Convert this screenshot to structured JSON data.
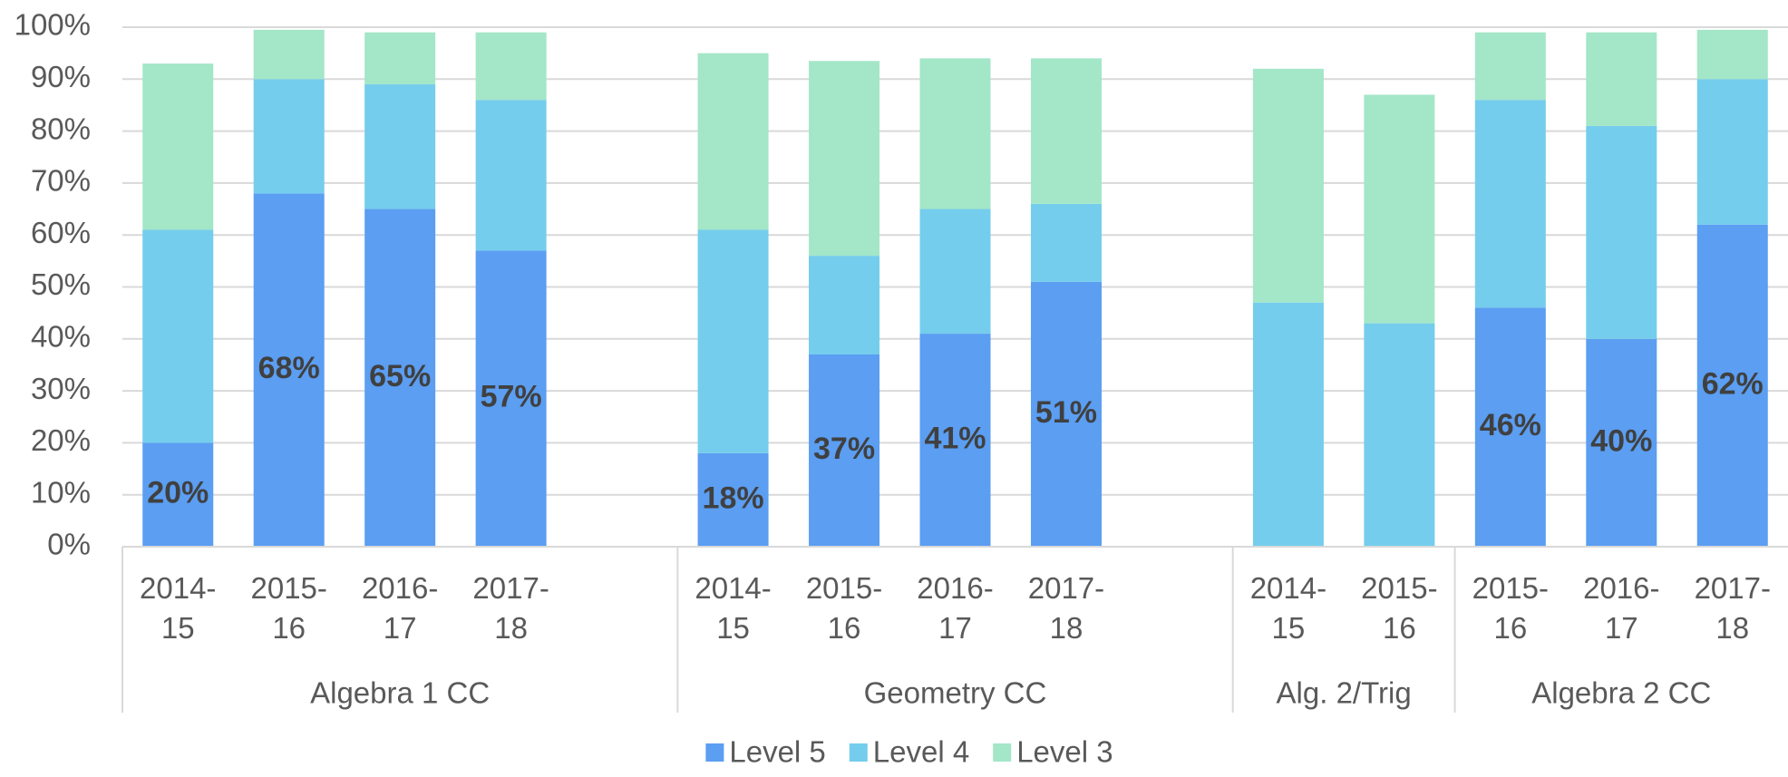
{
  "chart_data": {
    "type": "stacked_bar",
    "categories": [
      "2014-15",
      "2015-16",
      "2016-17",
      "2017-18",
      null,
      "2014-15",
      "2015-16",
      "2016-17",
      "2017-18",
      null,
      "2014-15",
      "2015-16",
      "2015-16",
      "2016-17",
      "2017-18"
    ],
    "groups": [
      {
        "name": "Algebra 1 CC",
        "span": 5
      },
      {
        "name": "Geometry CC",
        "span": 5
      },
      {
        "name": "Alg. 2/Trig",
        "span": 2
      },
      {
        "name": "Algebra 2 CC",
        "span": 3
      }
    ],
    "series": [
      {
        "name": "Level 5",
        "color": "#5b9ef2",
        "values": [
          20,
          68,
          65,
          57,
          null,
          18,
          37,
          41,
          51,
          null,
          null,
          null,
          46,
          40,
          62
        ],
        "value_labels": [
          "20%",
          "68%",
          "65%",
          "57%",
          null,
          "18%",
          "37%",
          "41%",
          "51%",
          null,
          null,
          null,
          "46%",
          "40%",
          "62%"
        ]
      },
      {
        "name": "Level 4",
        "color": "#74cdec",
        "values": [
          41,
          22,
          24,
          29,
          null,
          43,
          19,
          24,
          15,
          null,
          47,
          43,
          40,
          41,
          28
        ]
      },
      {
        "name": "Level 3",
        "color": "#a3e6c8",
        "values": [
          32,
          9.5,
          10,
          13,
          null,
          34,
          37.5,
          29,
          28,
          null,
          45,
          44,
          13,
          18,
          9.5
        ]
      }
    ],
    "ylim": [
      0,
      100
    ],
    "yticks": [
      {
        "value": 0,
        "label": "0%"
      },
      {
        "value": 10,
        "label": "10%"
      },
      {
        "value": 20,
        "label": "20%"
      },
      {
        "value": 30,
        "label": "30%"
      },
      {
        "value": 40,
        "label": "40%"
      },
      {
        "value": 50,
        "label": "50%"
      },
      {
        "value": 60,
        "label": "60%"
      },
      {
        "value": 70,
        "label": "70%"
      },
      {
        "value": 80,
        "label": "80%"
      },
      {
        "value": 90,
        "label": "90%"
      },
      {
        "value": 100,
        "label": "100%"
      }
    ],
    "grid": true,
    "legend": "bottom"
  }
}
